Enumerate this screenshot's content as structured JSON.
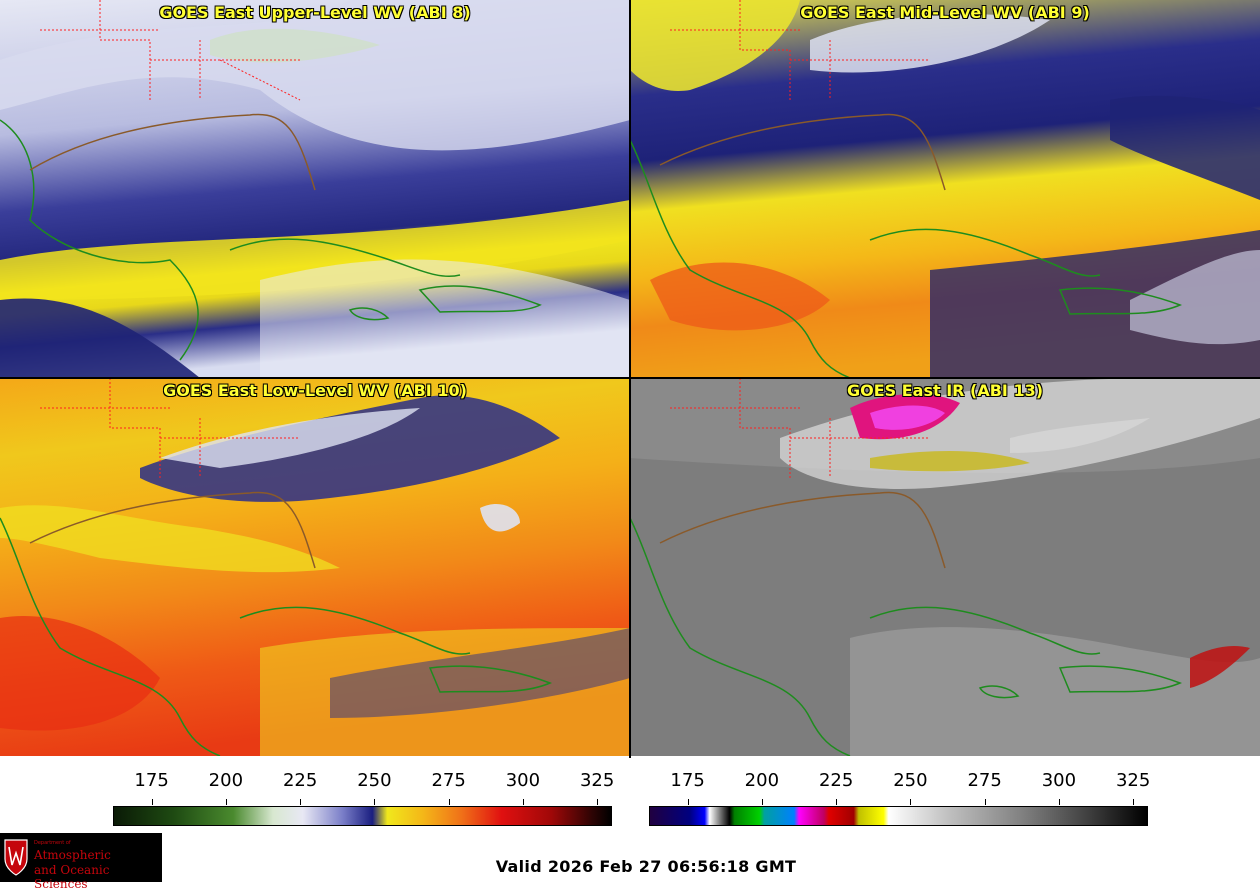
{
  "panels": {
    "upper": {
      "title": "GOES East Upper-Level WV (ABI 8)"
    },
    "mid": {
      "title": "GOES East Mid-Level WV (ABI 9)"
    },
    "low": {
      "title": "GOES East Low-Level WV (ABI 10)"
    },
    "ir": {
      "title": "GOES East IR (ABI 13)"
    }
  },
  "colorbars": {
    "wv": {
      "ticks": [
        "175",
        "200",
        "225",
        "250",
        "275",
        "300",
        "325"
      ],
      "range": [
        162,
        330
      ]
    },
    "ir": {
      "ticks": [
        "175",
        "200",
        "225",
        "250",
        "275",
        "300",
        "325"
      ],
      "range": [
        162,
        330
      ]
    }
  },
  "logo": {
    "dept": "Department of",
    "line1": "Atmospheric",
    "line2": "and Oceanic Sciences"
  },
  "footer": {
    "valid": "Valid 2026 Feb 27 06:56:18 GMT"
  },
  "colors": {
    "title": "#ffff33",
    "coastline": "#1e8c1e",
    "state_border": "#ff2020"
  }
}
